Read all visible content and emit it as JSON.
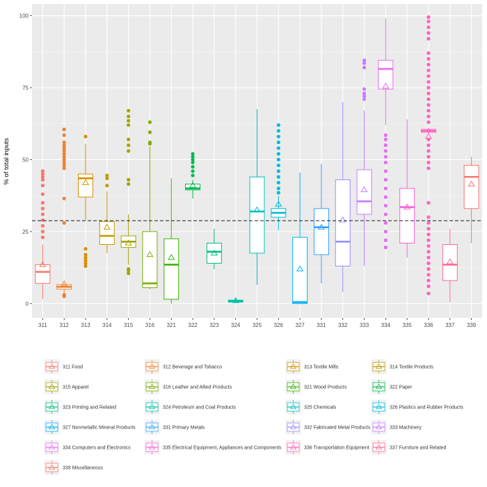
{
  "chart_data": {
    "type": "box",
    "ylabel": "% of total inputs",
    "xlabel": "",
    "ylim": [
      -5,
      104
    ],
    "yticks": [
      0,
      25,
      50,
      75,
      100
    ],
    "grid": true,
    "legend_position": "bottom",
    "reference_line": {
      "y": 28.8,
      "style": "dashed"
    },
    "categories": [
      {
        "code": "311",
        "name": "311 Food",
        "color": "#F8766D",
        "q1": 7,
        "median": 11,
        "q3": 13.5,
        "low": 1.5,
        "high": 20.5,
        "mean": 13.5,
        "outliers": [
          23,
          25,
          27,
          29,
          31,
          33,
          35,
          38,
          41,
          43,
          44,
          45,
          46
        ]
      },
      {
        "code": "312",
        "name": "312 Beverage and Tobacco",
        "color": "#EA8331",
        "q1": 5,
        "median": 5.8,
        "q3": 6.5,
        "low": 3.5,
        "high": 7,
        "mean": 6.8,
        "outliers": [
          2.5,
          3,
          28,
          36.5,
          47,
          48,
          49,
          50,
          51,
          52,
          53,
          54,
          55,
          56,
          58.5,
          60.5
        ]
      },
      {
        "code": "313",
        "name": "313 Textile Mills",
        "color": "#D89000",
        "q1": 37,
        "median": 43.5,
        "q3": 45,
        "low": 29,
        "high": 55.5,
        "mean": 42,
        "outliers": [
          13,
          14,
          15,
          16,
          17,
          19,
          58
        ]
      },
      {
        "code": "314",
        "name": "314 Textile Products",
        "color": "#C09B00",
        "q1": 20.5,
        "median": 23.5,
        "q3": 28.5,
        "low": 17.5,
        "high": 39,
        "mean": 26.5,
        "outliers": [
          41,
          43.5,
          44.5
        ]
      },
      {
        "code": "315",
        "name": "315 Apparel",
        "color": "#A3A500",
        "q1": 19.5,
        "median": 21.5,
        "q3": 23.5,
        "low": 13.5,
        "high": 31,
        "mean": 21,
        "outliers": [
          10.5,
          11.5,
          12,
          41.5,
          43,
          53,
          55,
          57,
          62,
          63.5,
          65,
          67
        ]
      },
      {
        "code": "316",
        "name": "316 Leather and Allied Products",
        "color": "#7CAE00",
        "q1": 5.5,
        "median": 7,
        "q3": 25,
        "low": 5,
        "high": 54.5,
        "mean": 17,
        "outliers": [
          55.5,
          56,
          59.5,
          63
        ]
      },
      {
        "code": "321",
        "name": "321 Wood Products",
        "color": "#39B600",
        "q1": 1.5,
        "median": 13.5,
        "q3": 22.5,
        "low": 0,
        "high": 43.5,
        "mean": 16,
        "outliers": []
      },
      {
        "code": "322",
        "name": "322 Paper",
        "color": "#00BB4E",
        "q1": 39.5,
        "median": 40,
        "q3": 41.5,
        "low": 36.5,
        "high": 43,
        "mean": 41,
        "outliers": [
          44.5,
          46,
          47.5,
          49,
          50,
          51,
          52
        ]
      },
      {
        "code": "323",
        "name": "323 Printing and Related",
        "color": "#00BF7D",
        "q1": 14,
        "median": 18,
        "q3": 21,
        "low": 12,
        "high": 26,
        "mean": 17.5,
        "outliers": []
      },
      {
        "code": "324",
        "name": "324 Petroleum and Coal Products",
        "color": "#00C1A3",
        "q1": 0.5,
        "median": 0.8,
        "q3": 1.2,
        "low": 0.2,
        "high": 1.8,
        "mean": 1,
        "outliers": []
      },
      {
        "code": "325",
        "name": "325 Chemicals",
        "color": "#00BFC4",
        "q1": 17.5,
        "median": 32,
        "q3": 44,
        "low": 6.5,
        "high": 67.5,
        "mean": 32.5,
        "outliers": []
      },
      {
        "code": "326",
        "name": "326 Plastics and Rubber Products",
        "color": "#00BAE0",
        "q1": 30,
        "median": 31.5,
        "q3": 33,
        "low": 25.5,
        "high": 37.5,
        "mean": 34.5,
        "outliers": [
          38.5,
          40,
          42,
          44,
          46,
          48,
          50,
          52,
          54,
          56,
          58,
          60,
          62
        ]
      },
      {
        "code": "327",
        "name": "327 Nonmetallic Mineral Products",
        "color": "#00B0F6",
        "q1": 0,
        "median": 0.5,
        "q3": 23,
        "low": 0,
        "high": 45.5,
        "mean": 12,
        "outliers": []
      },
      {
        "code": "331",
        "name": "331 Primary Metals",
        "color": "#35A2FF",
        "q1": 17,
        "median": 26.5,
        "q3": 33,
        "low": 7,
        "high": 48.5,
        "mean": 26.5,
        "outliers": []
      },
      {
        "code": "332",
        "name": "332 Fabricated Metal Products",
        "color": "#9590FF",
        "q1": 13,
        "median": 21.5,
        "q3": 43,
        "low": 4,
        "high": 70,
        "mean": 29,
        "outliers": []
      },
      {
        "code": "333",
        "name": "333 Machinery",
        "color": "#C77CFF",
        "q1": 31,
        "median": 35.5,
        "q3": 46.5,
        "low": 13,
        "high": 67,
        "mean": 39.5,
        "outliers": [
          71,
          72,
          73,
          74.5,
          82,
          83.5,
          84.5
        ]
      },
      {
        "code": "334",
        "name": "334 Computers and Electronics",
        "color": "#E76BF3",
        "q1": 74.5,
        "median": 81.5,
        "q3": 84.5,
        "low": 62,
        "high": 99,
        "mean": 75.5,
        "outliers": [
          19.5,
          22,
          25,
          28,
          31,
          34,
          37,
          40,
          43,
          46,
          49,
          51,
          53,
          55,
          57,
          58.5
        ]
      },
      {
        "code": "335",
        "name": "335 Electrical Equipment, Appliances and Components",
        "color": "#FA62DB",
        "q1": 21,
        "median": 33.5,
        "q3": 40,
        "low": 16,
        "high": 64,
        "mean": 33.5,
        "outliers": []
      },
      {
        "code": "336",
        "name": "336 Transportation Equipment",
        "color": "#FF62BC",
        "q1": 59.5,
        "median": 60,
        "q3": 60.5,
        "low": 59,
        "high": 61,
        "mean": 58,
        "outliers": [
          3.5,
          6,
          8,
          10,
          12,
          14,
          16,
          18,
          20,
          22,
          24,
          26,
          28,
          30,
          35,
          47,
          49,
          51,
          53,
          55,
          57,
          63,
          65,
          67,
          69,
          71,
          73,
          75,
          77,
          79,
          81,
          83,
          85,
          87,
          92,
          94,
          96,
          98,
          99.5
        ]
      },
      {
        "code": "337",
        "name": "337 Furniture and Related",
        "color": "#FF6C91",
        "q1": 8,
        "median": 13.5,
        "q3": 20.5,
        "low": 0.5,
        "high": 26,
        "mean": 14.5,
        "outliers": []
      },
      {
        "code": "339",
        "name": "339 Miscellaneous",
        "color": "#F8766D",
        "q1": 33,
        "median": 44,
        "q3": 48,
        "low": 21,
        "high": 51,
        "mean": 41.5,
        "outliers": []
      }
    ]
  }
}
